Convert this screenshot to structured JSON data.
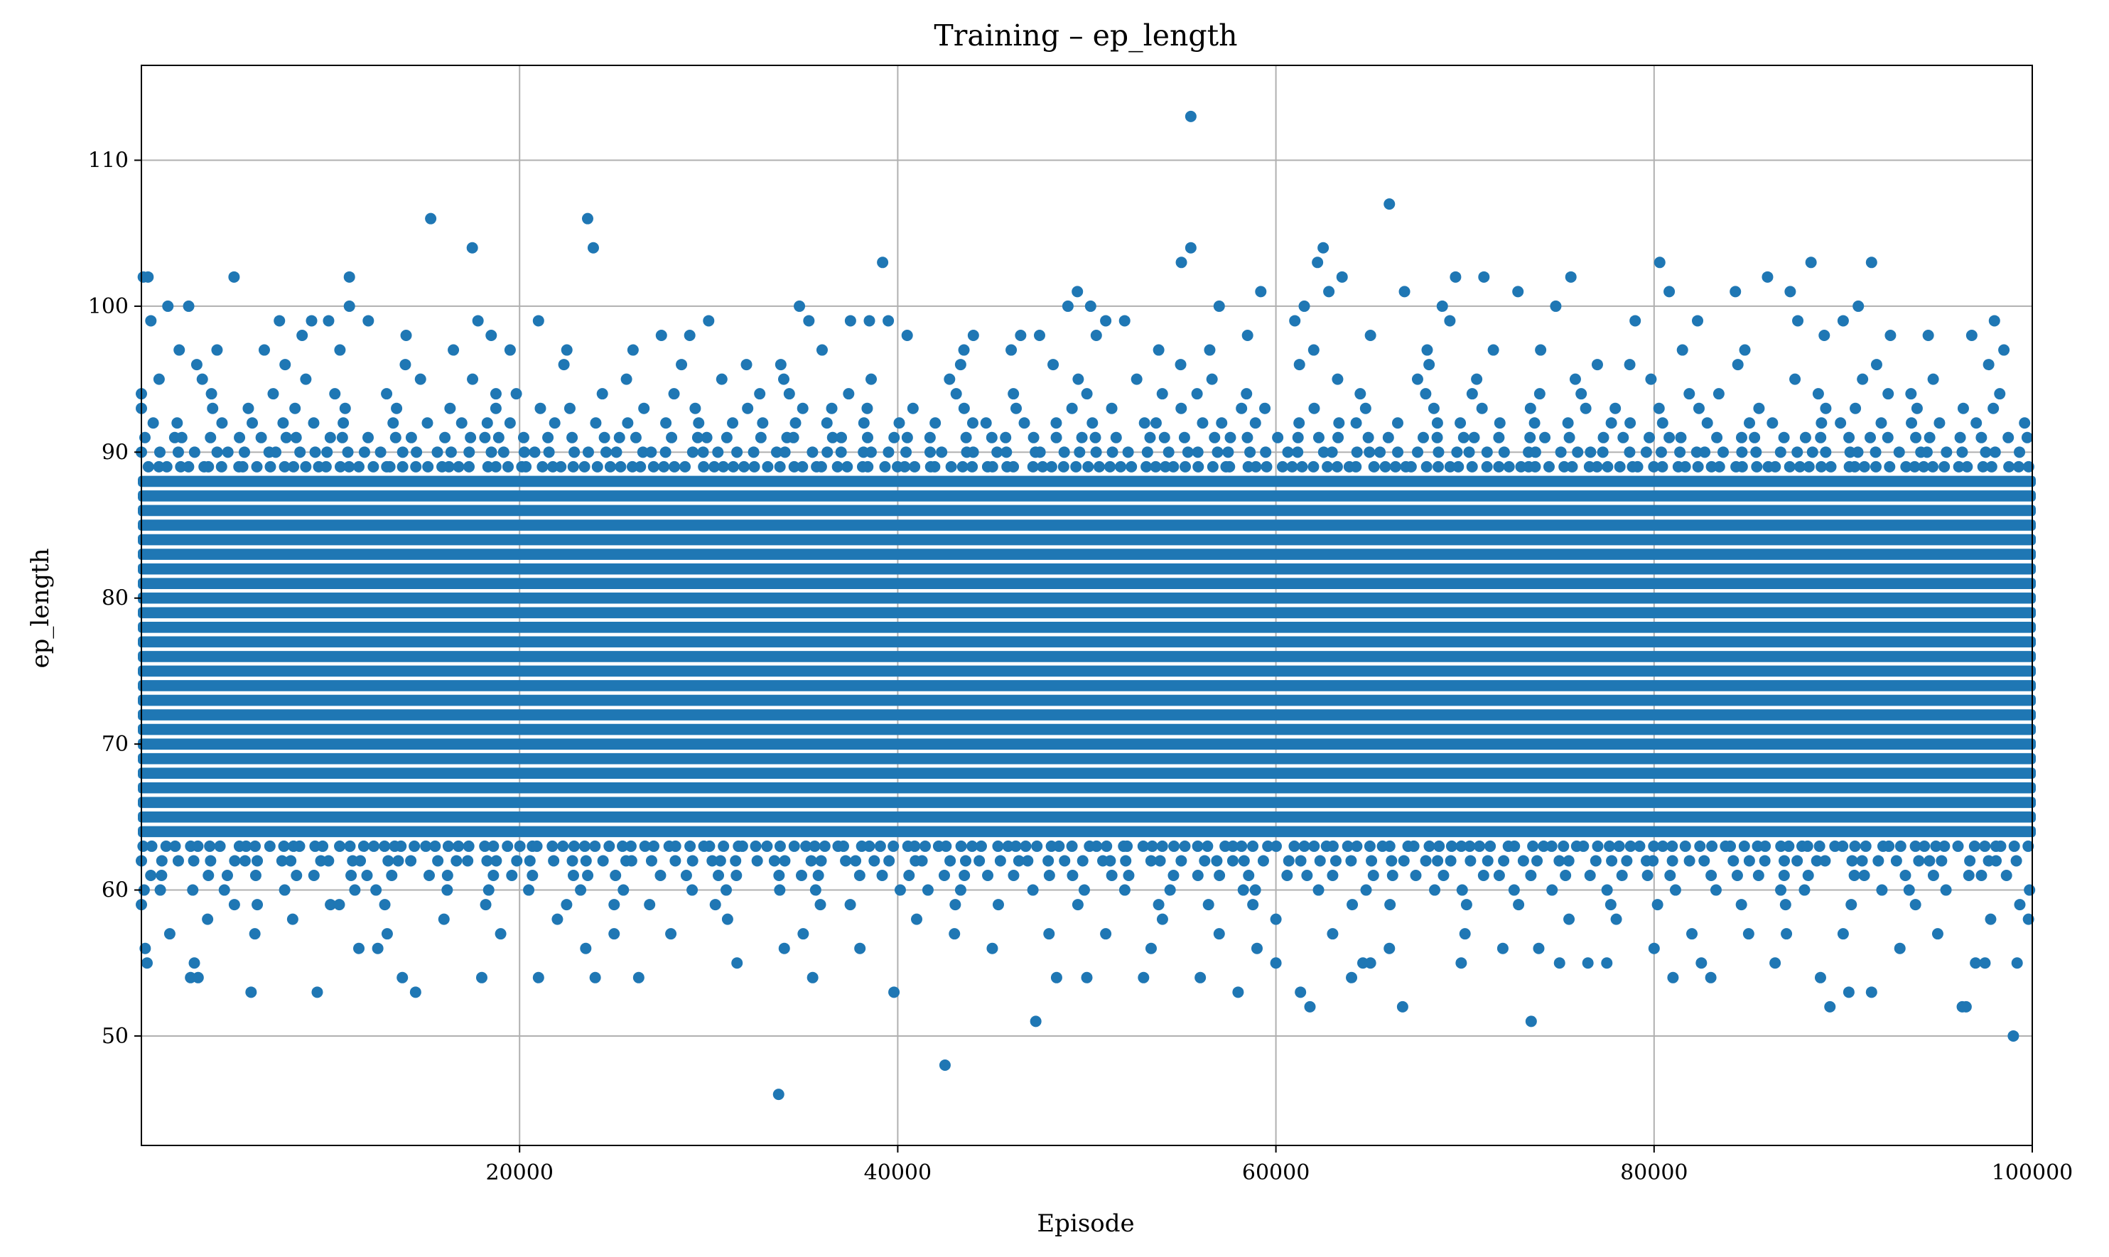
{
  "chart_data": {
    "type": "scatter",
    "title": "Training – ep_length",
    "xlabel": "Episode",
    "ylabel": "ep_length",
    "xlim": [
      0,
      100000
    ],
    "ylim": [
      42.5,
      116.5
    ],
    "x_ticks": [
      20000,
      40000,
      60000,
      80000,
      100000
    ],
    "y_ticks": [
      50,
      60,
      70,
      80,
      90,
      100,
      110
    ],
    "grid": true,
    "legend": "none",
    "marker_color": "#1f77b4",
    "dense_band": {
      "description_values": "ep_length values occupied at every episode across the full range",
      "x_range": [
        0,
        100000
      ],
      "y_values": [
        64,
        65,
        66,
        67,
        68,
        69,
        70,
        71,
        72,
        73,
        74,
        75,
        76,
        77,
        78,
        79,
        80,
        81,
        82,
        83,
        84,
        85,
        86,
        87,
        88
      ]
    },
    "points": [
      [
        100,
        102
      ],
      [
        350,
        102
      ],
      [
        200,
        56
      ],
      [
        300,
        55
      ],
      [
        500,
        99
      ],
      [
        1400,
        100
      ],
      [
        2500,
        100
      ],
      [
        1500,
        57
      ],
      [
        2600,
        54
      ],
      [
        3000,
        54
      ],
      [
        2800,
        55
      ],
      [
        4900,
        102
      ],
      [
        5800,
        53
      ],
      [
        7300,
        99
      ],
      [
        9000,
        99
      ],
      [
        9300,
        53
      ],
      [
        9900,
        99
      ],
      [
        11000,
        102
      ],
      [
        11000,
        100
      ],
      [
        12000,
        99
      ],
      [
        11500,
        56
      ],
      [
        12500,
        56
      ],
      [
        13800,
        54
      ],
      [
        14500,
        53
      ],
      [
        15300,
        106
      ],
      [
        17500,
        104
      ],
      [
        17800,
        99
      ],
      [
        18000,
        54
      ],
      [
        18500,
        98
      ],
      [
        21000,
        99
      ],
      [
        21000,
        54
      ],
      [
        23600,
        106
      ],
      [
        23900,
        104
      ],
      [
        24000,
        54
      ],
      [
        23500,
        56
      ],
      [
        26300,
        54
      ],
      [
        27500,
        98
      ],
      [
        29000,
        98
      ],
      [
        30000,
        99
      ],
      [
        31500,
        55
      ],
      [
        33700,
        46
      ],
      [
        34000,
        56
      ],
      [
        34800,
        100
      ],
      [
        35500,
        54
      ],
      [
        35300,
        99
      ],
      [
        37500,
        99
      ],
      [
        38500,
        99
      ],
      [
        39200,
        103
      ],
      [
        39500,
        99
      ],
      [
        39800,
        53
      ],
      [
        42500,
        48
      ],
      [
        44000,
        98
      ],
      [
        46500,
        98
      ],
      [
        47300,
        51
      ],
      [
        47500,
        98
      ],
      [
        48400,
        54
      ],
      [
        49000,
        100
      ],
      [
        49500,
        101
      ],
      [
        50000,
        54
      ],
      [
        50200,
        100
      ],
      [
        51000,
        99
      ],
      [
        52000,
        99
      ],
      [
        53000,
        54
      ],
      [
        53400,
        56
      ],
      [
        55000,
        103
      ],
      [
        55500,
        113
      ],
      [
        55500,
        104
      ],
      [
        56000,
        54
      ],
      [
        57000,
        100
      ],
      [
        58000,
        53
      ],
      [
        59000,
        56
      ],
      [
        59200,
        101
      ],
      [
        60000,
        55
      ],
      [
        61000,
        99
      ],
      [
        61300,
        53
      ],
      [
        61500,
        100
      ],
      [
        61800,
        52
      ],
      [
        62500,
        104
      ],
      [
        62200,
        103
      ],
      [
        62800,
        101
      ],
      [
        63500,
        102
      ],
      [
        64000,
        54
      ],
      [
        64600,
        55
      ],
      [
        65000,
        55
      ],
      [
        66000,
        107
      ],
      [
        66700,
        52
      ],
      [
        66800,
        101
      ],
      [
        68800,
        100
      ],
      [
        69200,
        99
      ],
      [
        69500,
        102
      ],
      [
        69800,
        55
      ],
      [
        71000,
        102
      ],
      [
        72800,
        101
      ],
      [
        73500,
        51
      ],
      [
        73900,
        56
      ],
      [
        74800,
        100
      ],
      [
        75000,
        55
      ],
      [
        75600,
        102
      ],
      [
        76500,
        55
      ],
      [
        77500,
        55
      ],
      [
        79000,
        99
      ],
      [
        80000,
        56
      ],
      [
        80300,
        103
      ],
      [
        80800,
        101
      ],
      [
        81000,
        54
      ],
      [
        82300,
        99
      ],
      [
        82500,
        55
      ],
      [
        83000,
        54
      ],
      [
        84300,
        101
      ],
      [
        86000,
        102
      ],
      [
        86400,
        55
      ],
      [
        87200,
        101
      ],
      [
        87600,
        99
      ],
      [
        88300,
        103
      ],
      [
        88800,
        54
      ],
      [
        89300,
        52
      ],
      [
        90000,
        99
      ],
      [
        90300,
        53
      ],
      [
        90800,
        100
      ],
      [
        91500,
        103
      ],
      [
        91500,
        53
      ],
      [
        96300,
        52
      ],
      [
        96500,
        52
      ],
      [
        97000,
        55
      ],
      [
        97500,
        55
      ],
      [
        98000,
        99
      ],
      [
        99000,
        50
      ],
      [
        99200,
        55
      ],
      [
        1000,
        60
      ],
      [
        3500,
        58
      ],
      [
        6000,
        57
      ],
      [
        8000,
        58
      ],
      [
        10000,
        59
      ],
      [
        13000,
        57
      ],
      [
        16000,
        58
      ],
      [
        19000,
        57
      ],
      [
        22000,
        58
      ],
      [
        25000,
        57
      ],
      [
        28000,
        57
      ],
      [
        31000,
        58
      ],
      [
        35000,
        57
      ],
      [
        38000,
        56
      ],
      [
        41000,
        58
      ],
      [
        43000,
        57
      ],
      [
        45000,
        56
      ],
      [
        48000,
        57
      ],
      [
        51000,
        57
      ],
      [
        54000,
        58
      ],
      [
        57000,
        57
      ],
      [
        60000,
        58
      ],
      [
        63000,
        57
      ],
      [
        66000,
        56
      ],
      [
        70000,
        57
      ],
      [
        72000,
        56
      ],
      [
        75500,
        58
      ],
      [
        78000,
        58
      ],
      [
        82000,
        57
      ],
      [
        85000,
        57
      ],
      [
        87000,
        57
      ],
      [
        90000,
        57
      ],
      [
        93000,
        56
      ],
      [
        95000,
        57
      ],
      [
        97800,
        58
      ],
      [
        99800,
        58
      ],
      [
        2000,
        97
      ],
      [
        4000,
        97
      ],
      [
        6500,
        97
      ],
      [
        8500,
        98
      ],
      [
        10500,
        97
      ],
      [
        14000,
        98
      ],
      [
        16500,
        97
      ],
      [
        19500,
        97
      ],
      [
        22500,
        97
      ],
      [
        26000,
        97
      ],
      [
        32000,
        96
      ],
      [
        36000,
        97
      ],
      [
        40500,
        98
      ],
      [
        43500,
        97
      ],
      [
        46000,
        97
      ],
      [
        50500,
        98
      ],
      [
        53800,
        97
      ],
      [
        56500,
        97
      ],
      [
        58500,
        98
      ],
      [
        62000,
        97
      ],
      [
        65000,
        98
      ],
      [
        68000,
        97
      ],
      [
        71500,
        97
      ],
      [
        74000,
        97
      ],
      [
        77000,
        96
      ],
      [
        81500,
        97
      ],
      [
        84800,
        97
      ],
      [
        89000,
        98
      ],
      [
        92500,
        98
      ],
      [
        94500,
        98
      ],
      [
        96800,
        98
      ],
      [
        98500,
        97
      ]
    ]
  }
}
